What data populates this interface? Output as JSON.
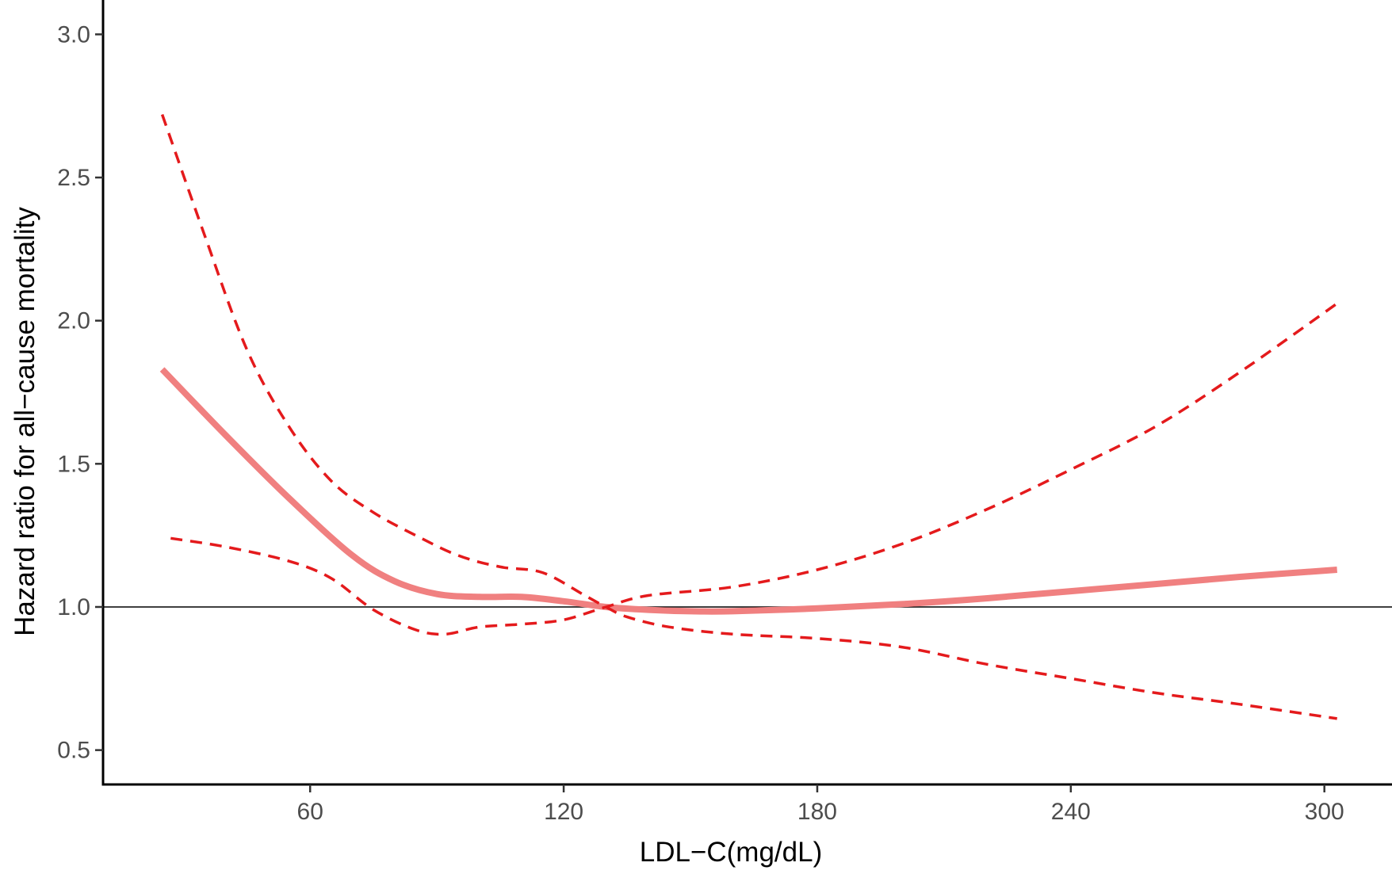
{
  "chart_data": {
    "type": "line",
    "title": "",
    "xlabel": "LDL−C(mg/dL)",
    "ylabel": "Hazard ratio for all−cause mortality",
    "xlim": [
      11,
      316
    ],
    "ylim": [
      0.38,
      3.12
    ],
    "xticks": [
      60,
      120,
      180,
      240,
      300
    ],
    "yticks": [
      0.5,
      1.0,
      1.5,
      2.0,
      2.5,
      3.0
    ],
    "xtick_labels": [
      "60",
      "120",
      "180",
      "240",
      "300"
    ],
    "ytick_labels": [
      "0.5",
      "1.0",
      "1.5",
      "2.0",
      "2.5",
      "3.0"
    ],
    "reference_line": 1.0,
    "grid": false,
    "legend": "none",
    "series": [
      {
        "role": "estimate",
        "style": "solid",
        "color": "#f08080",
        "points": [
          [
            25,
            1.83
          ],
          [
            40,
            1.6
          ],
          [
            55,
            1.38
          ],
          [
            70,
            1.18
          ],
          [
            80,
            1.09
          ],
          [
            90,
            1.045
          ],
          [
            100,
            1.035
          ],
          [
            110,
            1.035
          ],
          [
            120,
            1.02
          ],
          [
            130,
            1.0
          ],
          [
            140,
            0.99
          ],
          [
            150,
            0.985
          ],
          [
            160,
            0.985
          ],
          [
            180,
            0.995
          ],
          [
            200,
            1.01
          ],
          [
            220,
            1.03
          ],
          [
            240,
            1.055
          ],
          [
            260,
            1.08
          ],
          [
            280,
            1.105
          ],
          [
            303,
            1.13
          ]
        ]
      },
      {
        "role": "upper_ci",
        "style": "dashed",
        "color": "#e41a1c",
        "points": [
          [
            25,
            2.72
          ],
          [
            35,
            2.3
          ],
          [
            45,
            1.9
          ],
          [
            55,
            1.63
          ],
          [
            65,
            1.44
          ],
          [
            75,
            1.33
          ],
          [
            85,
            1.25
          ],
          [
            95,
            1.18
          ],
          [
            105,
            1.14
          ],
          [
            115,
            1.12
          ],
          [
            125,
            1.04
          ],
          [
            130,
            1.0
          ],
          [
            135,
            0.965
          ],
          [
            145,
            0.93
          ],
          [
            160,
            0.905
          ],
          [
            180,
            0.89
          ],
          [
            200,
            0.86
          ],
          [
            220,
            0.8
          ],
          [
            240,
            0.75
          ],
          [
            260,
            0.7
          ],
          [
            280,
            0.66
          ],
          [
            303,
            0.61
          ]
        ]
      },
      {
        "role": "lower_ci",
        "style": "dashed",
        "color": "#e41a1c",
        "points": [
          [
            27,
            1.24
          ],
          [
            40,
            1.21
          ],
          [
            55,
            1.16
          ],
          [
            65,
            1.1
          ],
          [
            75,
            0.99
          ],
          [
            85,
            0.92
          ],
          [
            92,
            0.905
          ],
          [
            100,
            0.93
          ],
          [
            110,
            0.94
          ],
          [
            120,
            0.955
          ],
          [
            130,
            1.0
          ],
          [
            140,
            1.04
          ],
          [
            160,
            1.07
          ],
          [
            180,
            1.13
          ],
          [
            200,
            1.22
          ],
          [
            220,
            1.34
          ],
          [
            240,
            1.48
          ],
          [
            260,
            1.63
          ],
          [
            280,
            1.82
          ],
          [
            303,
            2.06
          ]
        ]
      }
    ]
  }
}
